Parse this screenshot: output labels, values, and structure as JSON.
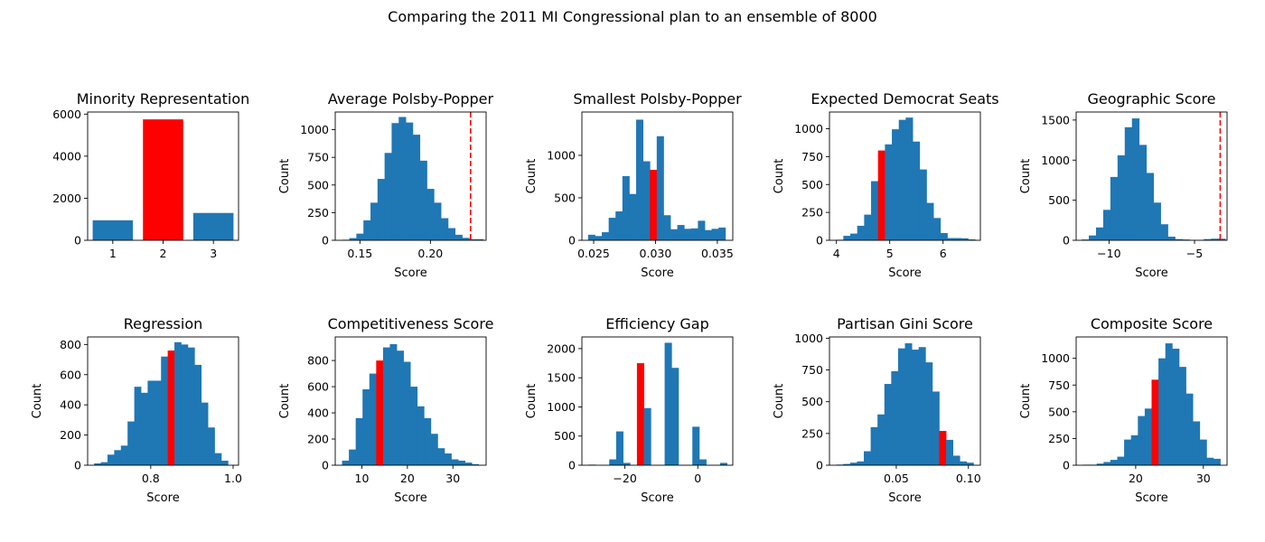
{
  "figure": {
    "title": "Comparing the 2011 MI Congressional plan to an ensemble of 8000"
  },
  "colors": {
    "ensemble": "#1f77b4",
    "plan": "#ff0000"
  },
  "chart_data": [
    {
      "type": "bar",
      "title": "Minority Representation",
      "xlabel": "",
      "ylabel": "",
      "xlim": [
        0.5,
        3.5
      ],
      "ylim": [
        0,
        6100
      ],
      "xticks": [
        1,
        2,
        3
      ],
      "xtick_labels": [
        "1",
        "2",
        "3"
      ],
      "yticks": [
        0,
        2000,
        4000,
        6000
      ],
      "ytick_labels": [
        "0",
        "2000",
        "4000",
        "6000"
      ],
      "categories": [
        1,
        2,
        3
      ],
      "values": [
        950,
        5750,
        1300
      ],
      "highlight_index": 1,
      "bar_width": 0.8
    },
    {
      "type": "histogram",
      "title": "Average Polsby-Popper",
      "xlabel": "Score",
      "ylabel": "Count",
      "xlim": [
        0.1325,
        0.2395
      ],
      "ylim": [
        0,
        1160
      ],
      "xticks": [
        0.15,
        0.2
      ],
      "xtick_labels": [
        "0.15",
        "0.20"
      ],
      "yticks": [
        0,
        250,
        500,
        750,
        1000
      ],
      "ytick_labels": [
        "0",
        "250",
        "500",
        "750",
        "1000"
      ],
      "bins_start": 0.1375,
      "bin_width": 0.005,
      "counts": [
        5,
        20,
        60,
        180,
        340,
        555,
        790,
        1060,
        1115,
        1065,
        955,
        720,
        465,
        340,
        200,
        110,
        50,
        22,
        10,
        10
      ],
      "plan_line": 0.2285
    },
    {
      "type": "histogram",
      "title": "Smallest Polsby-Popper",
      "xlabel": "Score",
      "ylabel": "Count",
      "xlim": [
        0.02405,
        0.03625
      ],
      "ylim": [
        0,
        1510
      ],
      "xticks": [
        0.025,
        0.03,
        0.035
      ],
      "xtick_labels": [
        "0.025",
        "0.030",
        "0.035"
      ],
      "yticks": [
        0,
        500,
        1000
      ],
      "ytick_labels": [
        "0",
        "500",
        "1000"
      ],
      "bins_start": 0.02455,
      "bin_width": 0.000555,
      "counts": [
        65,
        50,
        95,
        265,
        340,
        755,
        545,
        1420,
        930,
        830,
        1225,
        295,
        130,
        180,
        135,
        140,
        230,
        120,
        135,
        150
      ],
      "highlight_index": 9
    },
    {
      "type": "histogram",
      "title": "Expected Democrat Seats",
      "xlabel": "Score",
      "ylabel": "Count",
      "xlim": [
        3.87,
        6.7
      ],
      "ylim": [
        0,
        1150
      ],
      "xticks": [
        4,
        5,
        6
      ],
      "xtick_labels": [
        "4",
        "5",
        "6"
      ],
      "yticks": [
        0,
        250,
        500,
        750,
        1000
      ],
      "ytick_labels": [
        "0",
        "250",
        "500",
        "750",
        "1000"
      ],
      "bins_start": 4.0,
      "bin_width": 0.13,
      "counts": [
        5,
        40,
        60,
        130,
        230,
        530,
        805,
        860,
        995,
        1080,
        1100,
        885,
        635,
        335,
        200,
        65,
        20,
        20,
        18,
        8
      ],
      "highlight_index": 6
    },
    {
      "type": "histogram",
      "title": "Geographic Score",
      "xlabel": "Score",
      "ylabel": "Count",
      "xlim": [
        -11.92,
        -3.1
      ],
      "ylim": [
        0,
        1600
      ],
      "xticks": [
        -10,
        -5
      ],
      "xtick_labels": [
        "−10",
        "−5"
      ],
      "yticks": [
        0,
        500,
        1000,
        1500
      ],
      "ytick_labels": [
        "0",
        "500",
        "1000",
        "1500"
      ],
      "bins_start": -11.6,
      "bin_width": 0.42,
      "counts": [
        10,
        60,
        160,
        380,
        790,
        1060,
        1410,
        1520,
        1190,
        840,
        470,
        200,
        45,
        15,
        10,
        5,
        5,
        15,
        20,
        20
      ],
      "plan_line": -3.5
    },
    {
      "type": "histogram",
      "title": "Regression",
      "xlabel": "Score",
      "ylabel": "Count",
      "xlim": [
        0.6468,
        1.0132
      ],
      "ylim": [
        0,
        850
      ],
      "xticks": [
        0.8,
        1.0
      ],
      "xtick_labels": [
        "0.8",
        "1.0"
      ],
      "yticks": [
        0,
        200,
        400,
        600,
        800
      ],
      "ytick_labels": [
        "0",
        "200",
        "400",
        "600",
        "800"
      ],
      "bins_start": 0.6625,
      "bin_width": 0.01625,
      "counts": [
        12,
        20,
        70,
        100,
        130,
        290,
        520,
        480,
        560,
        560,
        720,
        760,
        815,
        800,
        780,
        665,
        415,
        250,
        80,
        30
      ],
      "highlight_index": 11
    },
    {
      "type": "histogram",
      "title": "Competitiveness Score",
      "xlabel": "Score",
      "ylabel": "Count",
      "xlim": [
        4.15,
        37.3
      ],
      "ylim": [
        0,
        980
      ],
      "xticks": [
        10,
        20,
        30
      ],
      "xtick_labels": [
        "10",
        "20",
        "30"
      ],
      "yticks": [
        0,
        200,
        400,
        600,
        800
      ],
      "ytick_labels": [
        "0",
        "200",
        "400",
        "600",
        "800"
      ],
      "bins_start": 5.65,
      "bin_width": 1.5,
      "counts": [
        35,
        120,
        360,
        580,
        700,
        800,
        900,
        925,
        875,
        790,
        600,
        450,
        360,
        240,
        130,
        90,
        45,
        35,
        20,
        8
      ],
      "highlight_index": 5
    },
    {
      "type": "histogram",
      "title": "Efficiency Gap",
      "xlabel": "Score",
      "ylabel": "Count",
      "xlim": [
        -31.8,
        9.6
      ],
      "ylim": [
        0,
        2200
      ],
      "xticks": [
        -20,
        0
      ],
      "xtick_labels": [
        "−20",
        "0"
      ],
      "yticks": [
        0,
        500,
        1000,
        1500,
        2000
      ],
      "ytick_labels": [
        "0",
        "500",
        "1000",
        "1500",
        "2000"
      ],
      "bins_start": -30.0,
      "bin_width": 1.9,
      "counts": [
        10,
        0,
        0,
        100,
        580,
        40,
        0,
        1750,
        980,
        0,
        0,
        2100,
        1670,
        0,
        0,
        660,
        100,
        0,
        0,
        40
      ],
      "highlight_index": 7
    },
    {
      "type": "histogram",
      "title": "Partisan Gini Score",
      "xlabel": "Score",
      "ylabel": "Count",
      "xlim": [
        0.0037,
        0.1083
      ],
      "ylim": [
        0,
        1010
      ],
      "xticks": [
        0.05,
        0.1
      ],
      "xtick_labels": [
        "0.05",
        "0.10"
      ],
      "yticks": [
        0,
        250,
        500,
        750,
        1000
      ],
      "ytick_labels": [
        "0",
        "250",
        "500",
        "750",
        "1000"
      ],
      "bins_start": 0.0085,
      "bin_width": 0.00475,
      "counts": [
        5,
        10,
        20,
        30,
        110,
        300,
        400,
        640,
        740,
        920,
        960,
        910,
        930,
        810,
        580,
        270,
        200,
        75,
        30,
        20
      ],
      "highlight_index": 15
    },
    {
      "type": "histogram",
      "title": "Composite Score",
      "xlabel": "Score",
      "ylabel": "Count",
      "xlim": [
        11.2,
        33.5
      ],
      "ylim": [
        0,
        1200
      ],
      "xticks": [
        20,
        30
      ],
      "xtick_labels": [
        "20",
        "30"
      ],
      "yticks": [
        0,
        250,
        500,
        750,
        1000
      ],
      "ytick_labels": [
        "0",
        "250",
        "500",
        "750",
        "1000"
      ],
      "bins_start": 12.2,
      "bin_width": 1.015,
      "counts": [
        5,
        5,
        15,
        30,
        50,
        80,
        240,
        280,
        460,
        530,
        800,
        1000,
        1140,
        1090,
        920,
        670,
        410,
        240,
        70,
        60
      ],
      "highlight_index": 10
    }
  ]
}
